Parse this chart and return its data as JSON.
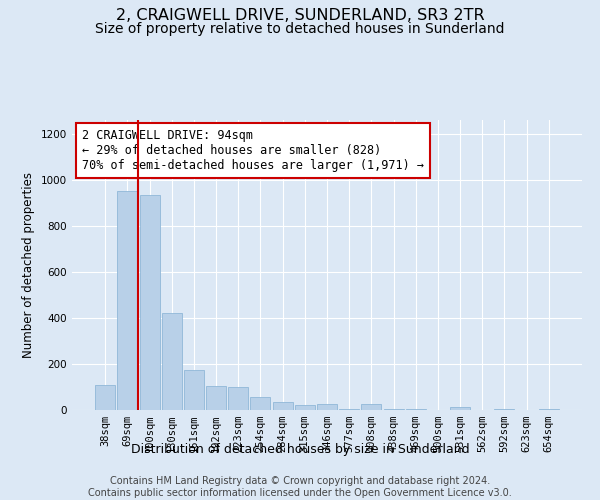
{
  "title": "2, CRAIGWELL DRIVE, SUNDERLAND, SR3 2TR",
  "subtitle": "Size of property relative to detached houses in Sunderland",
  "xlabel": "Distribution of detached houses by size in Sunderland",
  "ylabel": "Number of detached properties",
  "categories": [
    "38sqm",
    "69sqm",
    "100sqm",
    "130sqm",
    "161sqm",
    "192sqm",
    "223sqm",
    "254sqm",
    "284sqm",
    "315sqm",
    "346sqm",
    "377sqm",
    "408sqm",
    "438sqm",
    "469sqm",
    "500sqm",
    "531sqm",
    "562sqm",
    "592sqm",
    "623sqm",
    "654sqm"
  ],
  "values": [
    110,
    950,
    935,
    420,
    175,
    105,
    100,
    55,
    35,
    20,
    25,
    5,
    25,
    5,
    5,
    0,
    15,
    0,
    5,
    0,
    5
  ],
  "bar_color": "#b8d0e8",
  "bar_edge_color": "#90b8d8",
  "vline_x_index": 1.5,
  "vline_color": "#cc0000",
  "annotation_text": "2 CRAIGWELL DRIVE: 94sqm\n← 29% of detached houses are smaller (828)\n70% of semi-detached houses are larger (1,971) →",
  "annotation_box_facecolor": "#ffffff",
  "annotation_box_edgecolor": "#cc0000",
  "ylim": [
    0,
    1260
  ],
  "yticks": [
    0,
    200,
    400,
    600,
    800,
    1000,
    1200
  ],
  "bg_color": "#dce8f5",
  "plot_bg_color": "#dce8f5",
  "grid_color": "#ffffff",
  "footer_text": "Contains HM Land Registry data © Crown copyright and database right 2024.\nContains public sector information licensed under the Open Government Licence v3.0.",
  "title_fontsize": 11.5,
  "subtitle_fontsize": 10,
  "xlabel_fontsize": 9,
  "ylabel_fontsize": 8.5,
  "tick_fontsize": 7.5,
  "annotation_fontsize": 8.5,
  "footer_fontsize": 7
}
